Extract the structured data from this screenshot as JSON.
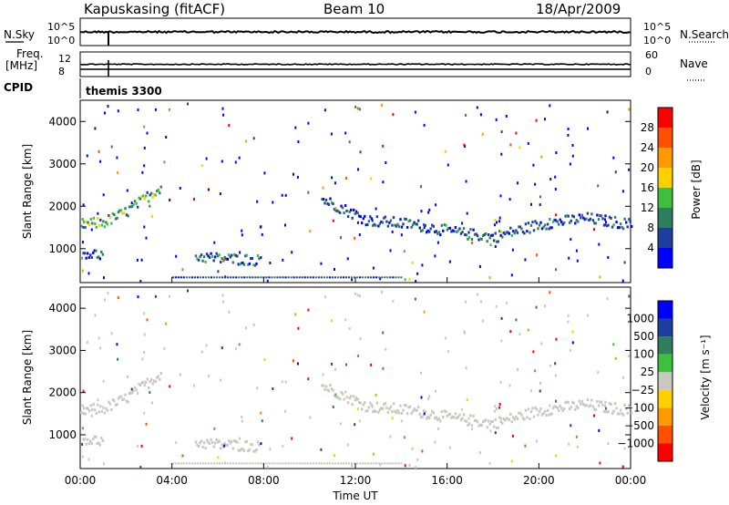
{
  "header": {
    "station": "Kapuskasing (fitACF)",
    "beam": "Beam 10",
    "date": "18/Apr/2009"
  },
  "top_panels": {
    "nsky_label": "N.Sky",
    "nsky_ticks": [
      "10^5",
      "10^0"
    ],
    "nsearch_label": "N.Search",
    "nsearch_ticks": [
      "10^5",
      "10^0"
    ],
    "freq_label": "Freq.",
    "freq_unit": "[MHz]",
    "freq_ticks": [
      "12",
      "8"
    ],
    "nave_label": "Nave",
    "nave_ticks": [
      "60",
      "0"
    ],
    "cpid_label": "CPID",
    "cpid_value": "themis 3300"
  },
  "colors": {
    "power_scale": [
      "#0000ff",
      "#1f3fa0",
      "#2f7f5f",
      "#3fbf3f",
      "#ffd000",
      "#ff9900",
      "#ff5000",
      "#ff0000"
    ],
    "velocity_scale": [
      "#ff0000",
      "#ff5000",
      "#ff9900",
      "#ffd000",
      "#c8c8c0",
      "#3fbf3f",
      "#2f7f5f",
      "#1f3fa0",
      "#0000ff"
    ],
    "ground_scatter": "#c8c8c0"
  },
  "chart_data": [
    {
      "type": "heatmap",
      "panel": "power",
      "ylabel": "Slant Range [km]",
      "yticks": [
        "1000",
        "2000",
        "3000",
        "4000"
      ],
      "ylim": [
        200,
        4500
      ],
      "xlim": [
        0,
        24
      ],
      "colorbar_label": "Power [dB]",
      "colorbar_ticks": [
        "4",
        "8",
        "12",
        "16",
        "20",
        "24",
        "28"
      ],
      "colorbar_range": [
        0,
        32
      ],
      "echo_bands": [
        {
          "x": [
            0.0,
            1.0,
            2.0,
            3.0,
            3.5
          ],
          "y": [
            1600,
            1650,
            1900,
            2300,
            2500
          ],
          "power": 14
        },
        {
          "x": [
            10.5,
            12.5,
            14.5,
            16.5,
            18.0,
            20.0,
            22.0,
            24.0
          ],
          "y": [
            2200,
            1700,
            1600,
            1400,
            1300,
            1600,
            1750,
            1600
          ],
          "power": 8
        },
        {
          "x": [
            5.0,
            6.0,
            7.0,
            7.8
          ],
          "y": [
            850,
            800,
            780,
            750
          ],
          "power": 10
        },
        {
          "x": [
            0.1,
            0.5,
            1.0
          ],
          "y": [
            950,
            900,
            880
          ],
          "power": 6
        }
      ]
    },
    {
      "type": "heatmap",
      "panel": "velocity",
      "ylabel": "Slant Range [km]",
      "yticks": [
        "1000",
        "2000",
        "3000",
        "4000"
      ],
      "ylim": [
        200,
        4500
      ],
      "xlim": [
        0,
        24
      ],
      "xlabel": "Time UT",
      "xticks": [
        "00:00",
        "04:00",
        "08:00",
        "12:00",
        "16:00",
        "20:00",
        "00:00"
      ],
      "colorbar_label": "Velocity [m s⁻¹]",
      "colorbar_ticks": [
        "1000",
        "500",
        "100",
        "25",
        "−25",
        "−100",
        "−500",
        "−1000"
      ],
      "note": "echoes predominantly ground scatter (grey)"
    }
  ]
}
